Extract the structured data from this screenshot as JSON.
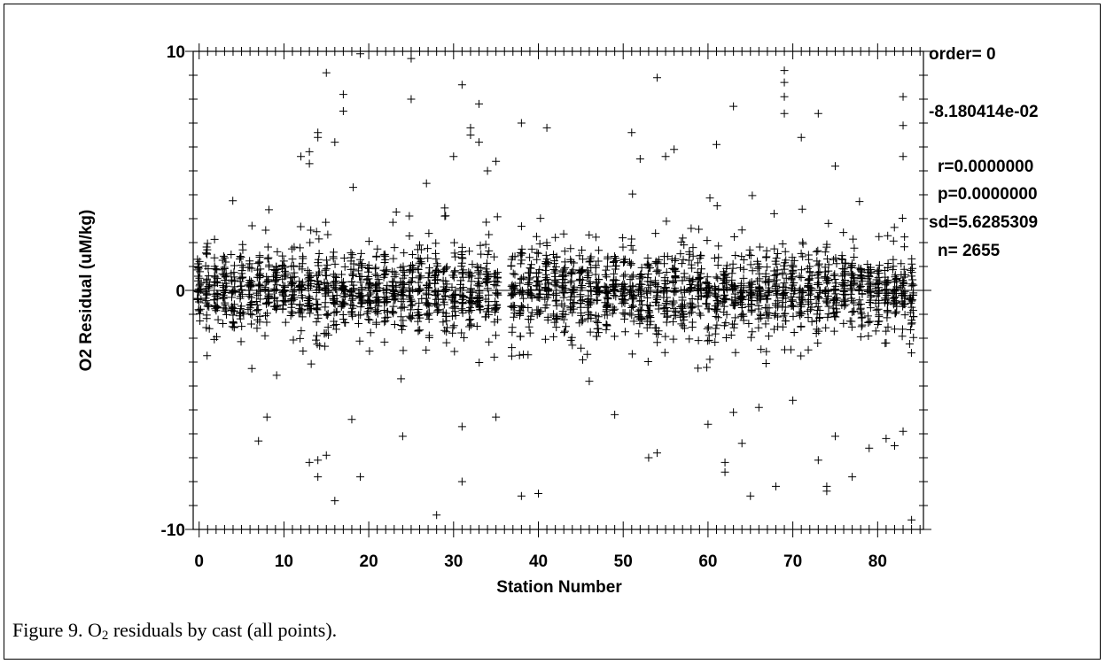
{
  "caption": {
    "prefix": "Figure 9. O",
    "subscript": "2",
    "suffix": " residuals by cast (all points)."
  },
  "stats": {
    "order": "order= 0",
    "mean": "-8.180414e-02",
    "r": "r=0.0000000",
    "p": "p=0.0000000",
    "sd": "sd=5.6285309",
    "n": "n= 2655"
  },
  "chart_data": {
    "type": "scatter",
    "marker": "plus",
    "xlabel": "Station Number",
    "ylabel": "O2 Residual (uM/kg)",
    "xlim": [
      -0.7,
      85.4
    ],
    "ylim": [
      -10,
      10
    ],
    "xticks": [
      0,
      10,
      20,
      30,
      40,
      50,
      60,
      70,
      80
    ],
    "xtick_labels": [
      "0",
      "10",
      "20",
      "30",
      "40",
      "50",
      "60",
      "70",
      "80"
    ],
    "yticks": [
      -10,
      0,
      10
    ],
    "ytick_labels": [
      "-10",
      "0",
      "10"
    ],
    "zero_line": true,
    "grid": false,
    "point_count": 2655,
    "dense_cloud": {
      "stations_from": 0,
      "stations_to": 35,
      "stations_from_2": 37,
      "stations_to_2": 84,
      "core_sd": 1.1,
      "outer_range": [
        -3.0,
        3.5
      ]
    },
    "outliers": [
      [
        15,
        9.1
      ],
      [
        17,
        8.2
      ],
      [
        17,
        7.5
      ],
      [
        19,
        9.9
      ],
      [
        25,
        9.7
      ],
      [
        25,
        8.0
      ],
      [
        31,
        8.6
      ],
      [
        32,
        6.8
      ],
      [
        32,
        6.5
      ],
      [
        33,
        7.8
      ],
      [
        33,
        6.2
      ],
      [
        14,
        6.6
      ],
      [
        14,
        6.4
      ],
      [
        13,
        5.8
      ],
      [
        12,
        5.6
      ],
      [
        13,
        5.3
      ],
      [
        16,
        6.2
      ],
      [
        30,
        5.6
      ],
      [
        34,
        5.0
      ],
      [
        35,
        5.4
      ],
      [
        38,
        7.0
      ],
      [
        41,
        6.8
      ],
      [
        54,
        8.9
      ],
      [
        63,
        7.7
      ],
      [
        69,
        9.2
      ],
      [
        69,
        8.7
      ],
      [
        69,
        8.1
      ],
      [
        69,
        7.4
      ],
      [
        71,
        6.4
      ],
      [
        73,
        7.4
      ],
      [
        83,
        8.1
      ],
      [
        83,
        6.9
      ],
      [
        83,
        5.6
      ],
      [
        51,
        6.6
      ],
      [
        75,
        5.2
      ],
      [
        61,
        6.1
      ],
      [
        56,
        5.9
      ],
      [
        55,
        5.6
      ],
      [
        52,
        5.5
      ],
      [
        14,
        -7.1
      ],
      [
        14,
        -7.8
      ],
      [
        15,
        -6.9
      ],
      [
        16,
        -8.8
      ],
      [
        19,
        -7.8
      ],
      [
        24,
        -6.1
      ],
      [
        28,
        -9.4
      ],
      [
        31,
        -8.0
      ],
      [
        31,
        -5.7
      ],
      [
        7,
        -6.3
      ],
      [
        13,
        -7.2
      ],
      [
        18,
        -5.4
      ],
      [
        38,
        -8.6
      ],
      [
        40,
        -8.5
      ],
      [
        53,
        -7.0
      ],
      [
        54,
        -6.8
      ],
      [
        62,
        -7.2
      ],
      [
        62,
        -7.6
      ],
      [
        64,
        -6.4
      ],
      [
        65,
        -8.6
      ],
      [
        68,
        -8.2
      ],
      [
        73,
        -7.1
      ],
      [
        74,
        -8.2
      ],
      [
        74,
        -8.4
      ],
      [
        77,
        -7.8
      ],
      [
        79,
        -6.6
      ],
      [
        81,
        -6.2
      ],
      [
        82,
        -6.5
      ],
      [
        83,
        -5.9
      ],
      [
        84,
        -9.6
      ],
      [
        75,
        -6.1
      ],
      [
        63,
        -5.1
      ],
      [
        60,
        -5.6
      ],
      [
        49,
        -5.2
      ],
      [
        35,
        -5.3
      ],
      [
        8,
        -5.3
      ],
      [
        46,
        -3.8
      ],
      [
        66,
        -4.9
      ],
      [
        70,
        -4.6
      ]
    ]
  }
}
